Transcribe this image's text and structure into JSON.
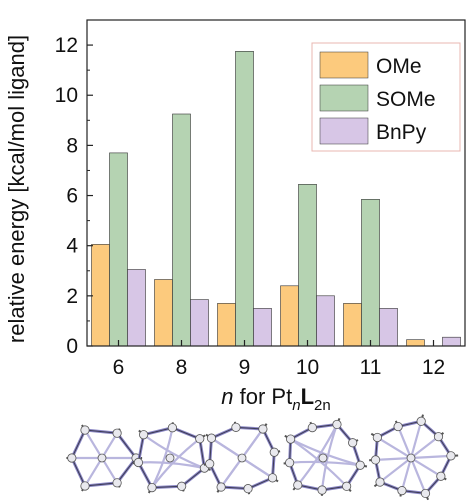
{
  "chart_data": {
    "type": "bar",
    "categories": [
      "6",
      "8",
      "9",
      "10",
      "11",
      "12"
    ],
    "series": [
      {
        "name": "OMe",
        "color": "#fcca7d",
        "values": [
          4.05,
          2.65,
          1.7,
          2.4,
          1.7,
          0.25
        ]
      },
      {
        "name": "SOMe",
        "color": "#b5d3b2",
        "values": [
          7.7,
          9.25,
          11.75,
          6.45,
          5.85,
          null
        ]
      },
      {
        "name": "BnPy",
        "color": "#d7c6e6",
        "values": [
          3.05,
          1.85,
          1.5,
          2.0,
          1.5,
          0.35
        ]
      }
    ],
    "ylim": [
      0,
      13
    ],
    "yticks": [
      0,
      2,
      4,
      6,
      8,
      10,
      12
    ],
    "ylabel": "relative energy [kcal/mol ligand]",
    "xlabel": {
      "prefix": "n",
      "middle": " for Pt",
      "sub1": "n",
      "bold": "L",
      "sub2": "2n"
    },
    "legend_position": "top-right",
    "grid": false,
    "bar_outline": "#333333"
  },
  "illustrations": [
    {
      "name": "pt6-cage-icon"
    },
    {
      "name": "pt8-cage-icon"
    },
    {
      "name": "pt9-cage-icon"
    },
    {
      "name": "pt10-cage-icon"
    },
    {
      "name": "pt11-cage-icon"
    }
  ]
}
